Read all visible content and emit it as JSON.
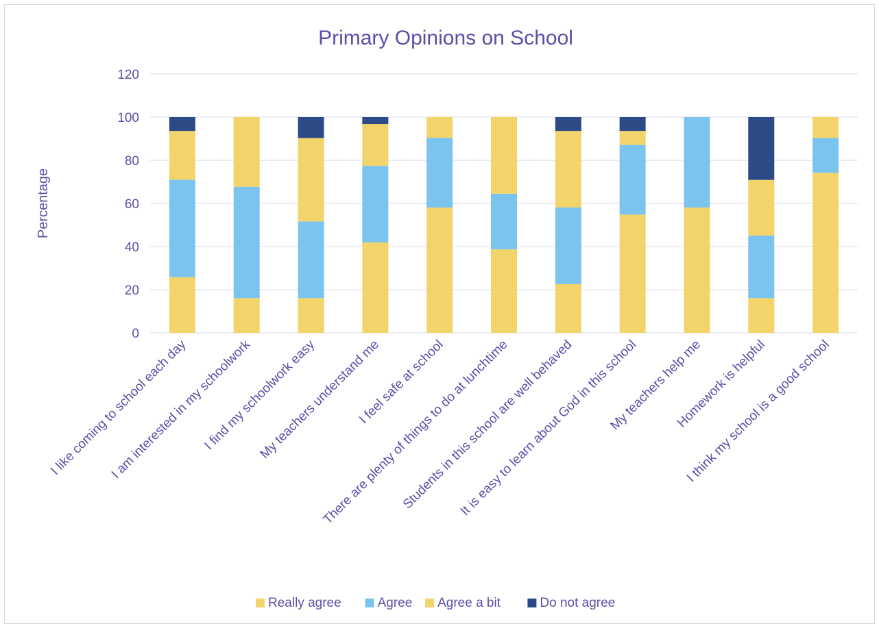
{
  "chart_data": {
    "type": "bar",
    "stacked": true,
    "title": "Primary Opinions on School",
    "ylabel": "Percentage",
    "xlabel": "",
    "ylim": [
      0,
      120
    ],
    "yticks": [
      0,
      20,
      40,
      60,
      80,
      100,
      120
    ],
    "grid": true,
    "legend_position": "bottom",
    "categories": [
      "I like coming to school each day",
      "I am interested in my schoolwork",
      "I find my schoolwork easy",
      "My teachers understand me",
      "I feel safe at school",
      "There are plenty of things to do at lunchtime",
      "Students in this school are well behaved",
      "It is easy to learn about God in this school",
      "My teachers help me",
      "Homework is helpful",
      "I think my school is a good school"
    ],
    "series": [
      {
        "name": "Really agree",
        "color": "#f2d46b",
        "values": [
          25.8,
          16.1,
          16.1,
          41.9,
          58.1,
          38.7,
          22.6,
          54.8,
          58.1,
          16.1,
          74.2
        ]
      },
      {
        "name": "Agree",
        "color": "#7cc4f0",
        "values": [
          45.2,
          51.6,
          35.5,
          35.5,
          32.3,
          25.8,
          35.5,
          32.3,
          41.9,
          29.0,
          16.1
        ]
      },
      {
        "name": "Agree a bit",
        "color": "#f2d46b",
        "values": [
          22.6,
          32.3,
          38.7,
          19.4,
          9.6,
          35.5,
          35.5,
          6.5,
          0,
          25.8,
          9.7
        ]
      },
      {
        "name": "Do not agree",
        "color": "#2c4a85",
        "values": [
          6.4,
          0,
          9.7,
          3.2,
          0,
          0,
          6.4,
          6.4,
          0,
          29.1,
          0
        ]
      }
    ]
  }
}
